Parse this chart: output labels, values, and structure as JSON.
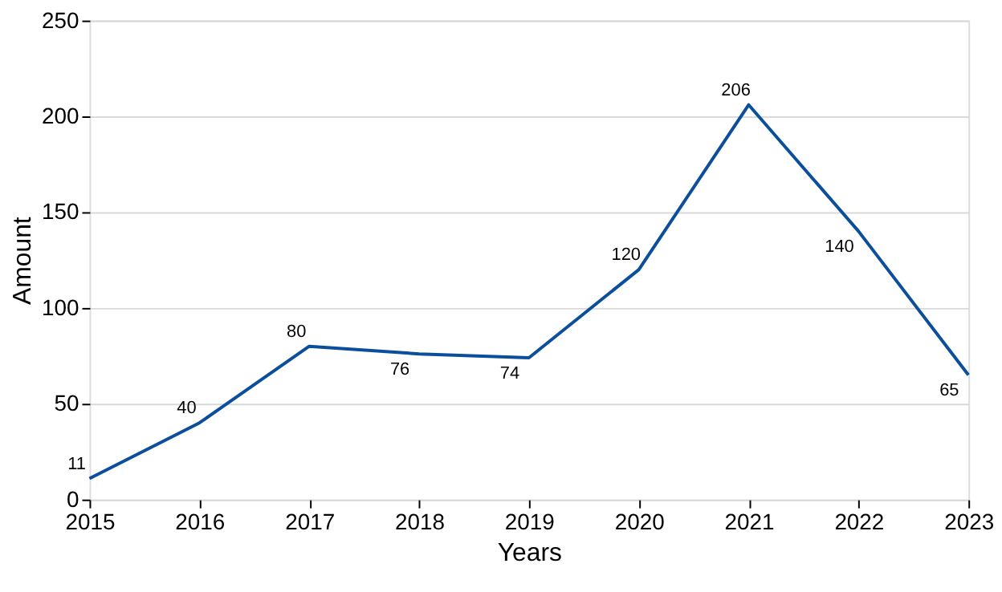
{
  "chart_data": {
    "type": "line",
    "xlabel": "Years",
    "ylabel": "Amount",
    "x": [
      2015,
      2016,
      2017,
      2018,
      2019,
      2020,
      2021,
      2022,
      2023
    ],
    "series": [
      {
        "color": "#0b4f9c",
        "values": [
          11,
          40,
          80,
          76,
          74,
          120,
          206,
          140,
          65
        ]
      }
    ],
    "xlim": [
      2015,
      2023
    ],
    "xticks": [
      2015,
      2016,
      2017,
      2018,
      2019,
      2020,
      2021,
      2022,
      2023
    ],
    "ylim": [
      0,
      250
    ],
    "yticks": [
      0,
      50,
      100,
      150,
      200,
      250
    ],
    "grid": "y",
    "data_labels": true,
    "marker": "none",
    "line_style": "solid"
  }
}
